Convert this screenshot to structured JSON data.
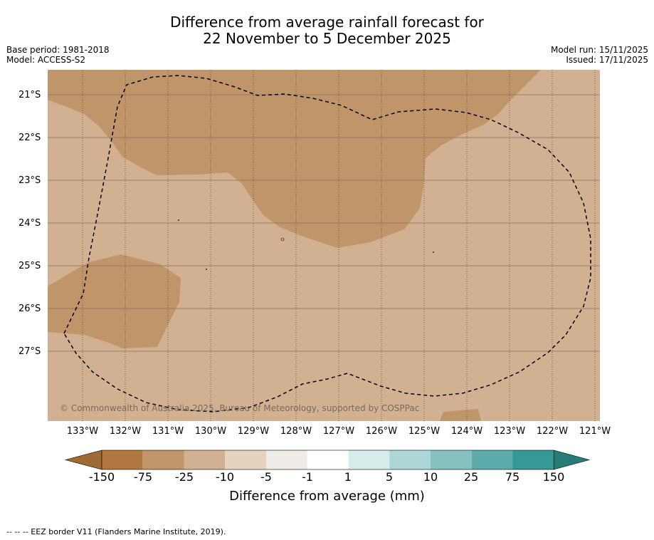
{
  "title": {
    "line1": "Difference from average rainfall forecast for",
    "line2": "22 November to 5 December 2025"
  },
  "meta": {
    "base_period": "Base period: 1981-2018",
    "model": "Model: ACCESS-S2",
    "model_run": "Model run: 15/11/2025",
    "issued": "Issued: 17/11/2025"
  },
  "map": {
    "background_color": "#d2b192",
    "wet_deficit_color": "#c0956a",
    "latitude_labels": [
      "21°S",
      "22°S",
      "23°S",
      "24°S",
      "25°S",
      "26°S",
      "27°S"
    ],
    "longitude_labels": [
      "133°W",
      "132°W",
      "131°W",
      "130°W",
      "129°W",
      "128°W",
      "127°W",
      "126°W",
      "125°W",
      "124°W",
      "123°W",
      "122°W",
      "121°W"
    ],
    "copyright": "© Commonwealth of Australia 2025, Bureau of Meteorology, supported by COSPPac"
  },
  "colorbar": {
    "colors": [
      "#a06a32",
      "#b07840",
      "#c0956a",
      "#d2b192",
      "#e5d3c0",
      "#efebe6",
      "#ffffff",
      "#d6ecea",
      "#acd7d6",
      "#85c1c0",
      "#5bacaa",
      "#359a96",
      "#267c78"
    ],
    "tick_labels": [
      "-150",
      "-75",
      "-25",
      "-10",
      "-5",
      "-1",
      "1",
      "5",
      "10",
      "25",
      "75",
      "150"
    ],
    "title": "Difference from average (mm)"
  },
  "legend_note": "--  --  -- EEZ border V11 (Flanders Marine Institute, 2019)."
}
